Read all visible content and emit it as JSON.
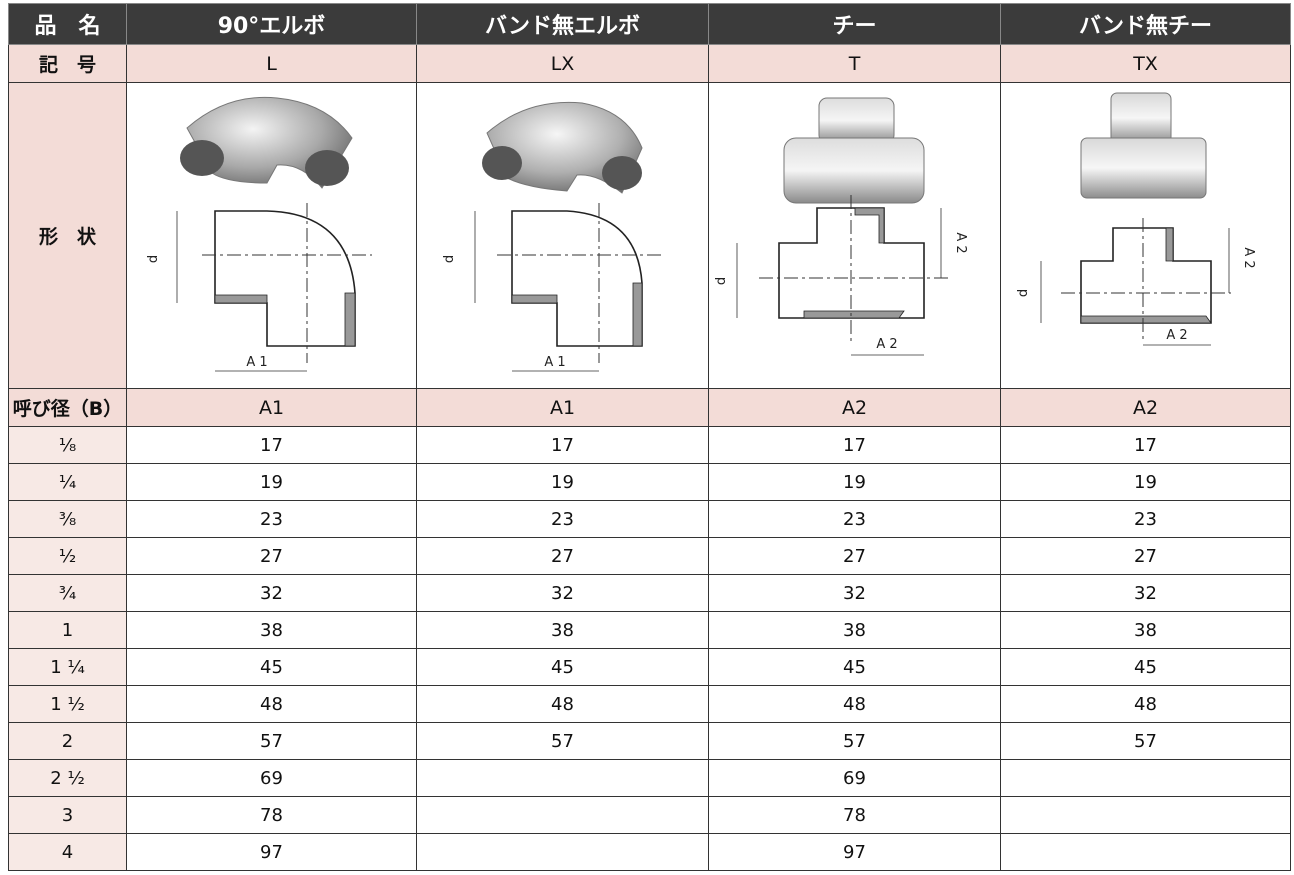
{
  "table": {
    "header": [
      "品　名",
      "90°エルボ",
      "バンド無エルボ",
      "チー",
      "バンド無チー"
    ],
    "symbol_row": [
      "記　号",
      "L",
      "LX",
      "T",
      "TX"
    ],
    "shape_label": "形　状",
    "dimension_row": [
      "呼び径（B）",
      "A1",
      "A1",
      "A2",
      "A2"
    ],
    "rows": [
      [
        "¹⁄₈",
        17,
        17,
        17,
        17
      ],
      [
        "¹⁄₄",
        19,
        19,
        19,
        19
      ],
      [
        "³⁄₈",
        23,
        23,
        23,
        23
      ],
      [
        "¹⁄₂",
        27,
        27,
        27,
        27
      ],
      [
        "³⁄₄",
        32,
        32,
        32,
        32
      ],
      [
        "1",
        38,
        38,
        38,
        38
      ],
      [
        "1 ¹⁄₄",
        45,
        45,
        45,
        45
      ],
      [
        "1 ¹⁄₂",
        48,
        48,
        48,
        48
      ],
      [
        "2",
        57,
        57,
        57,
        57
      ],
      [
        "2 ¹⁄₂",
        69,
        null,
        69,
        null
      ],
      [
        "3",
        78,
        null,
        78,
        null
      ],
      [
        "4",
        97,
        null,
        97,
        null
      ]
    ]
  },
  "drawings": [
    {
      "labels": [
        "d",
        "A 1"
      ]
    },
    {
      "labels": [
        "d",
        "A 1"
      ]
    },
    {
      "labels": [
        "A 2",
        "d",
        "A 2"
      ]
    },
    {
      "labels": [
        "A 2",
        "d",
        "A 2"
      ]
    }
  ]
}
